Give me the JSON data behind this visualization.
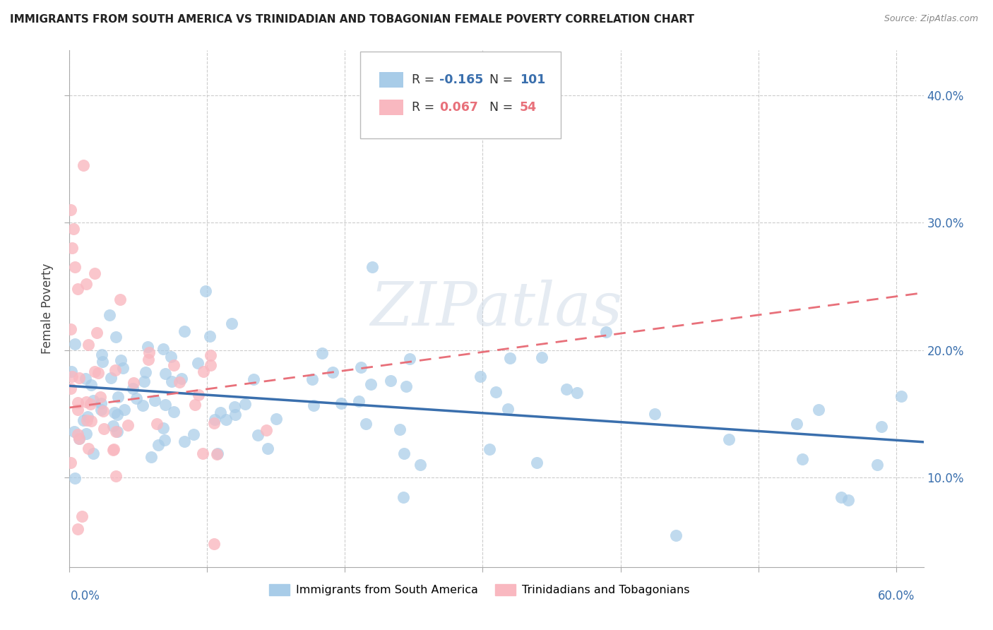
{
  "title": "IMMIGRANTS FROM SOUTH AMERICA VS TRINIDADIAN AND TOBAGONIAN FEMALE POVERTY CORRELATION CHART",
  "source": "Source: ZipAtlas.com",
  "ylabel": "Female Poverty",
  "legend_blue_r": "-0.165",
  "legend_blue_n": "101",
  "legend_pink_r": "0.067",
  "legend_pink_n": "54",
  "legend_label_blue": "Immigrants from South America",
  "legend_label_pink": "Trinidadians and Tobagonians",
  "blue_color": "#a8cce8",
  "pink_color": "#f9b8c0",
  "blue_line_color": "#3a6fad",
  "pink_line_color": "#e8707a",
  "watermark": "ZIPatlas",
  "xlim": [
    0.0,
    0.62
  ],
  "ylim": [
    0.03,
    0.435
  ],
  "right_yticks": [
    0.1,
    0.2,
    0.3,
    0.4
  ],
  "right_ytick_labels": [
    "10.0%",
    "20.0%",
    "30.0%",
    "40.0%"
  ],
  "xtick_left_label": "0.0%",
  "xtick_right_label": "60.0%",
  "blue_line_x0": 0.0,
  "blue_line_y0": 0.172,
  "blue_line_x1": 0.62,
  "blue_line_y1": 0.128,
  "pink_line_x0": 0.0,
  "pink_line_y0": 0.155,
  "pink_line_x1": 0.62,
  "pink_line_y1": 0.245
}
